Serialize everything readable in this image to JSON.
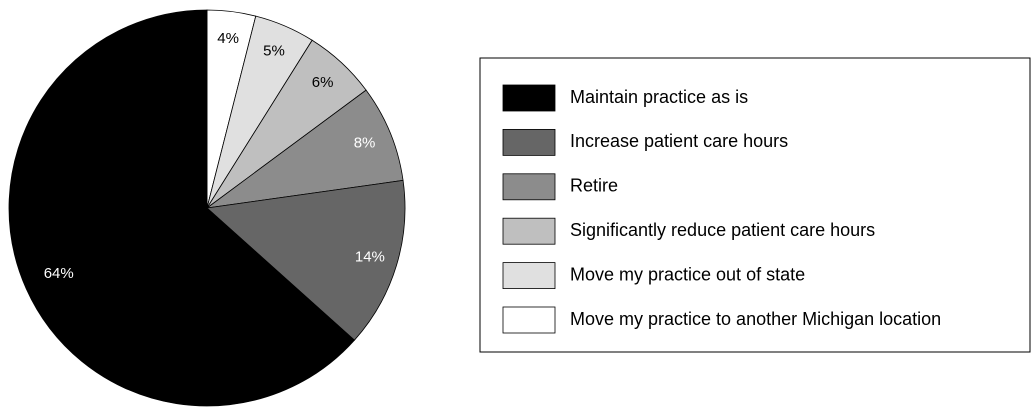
{
  "chart_data": {
    "type": "pie",
    "categories": [
      "Maintain practice as is",
      "Increase patient care hours",
      "Retire",
      "Significantly reduce patient care hours",
      "Move my practice out of state",
      "Move my practice to another Michigan location"
    ],
    "values": [
      64,
      14,
      8,
      6,
      5,
      4
    ],
    "value_labels": [
      "64%",
      "14%",
      "8%",
      "6%",
      "5%",
      "4%"
    ],
    "colors": [
      "#000000",
      "#666666",
      "#8c8c8c",
      "#bfbfbf",
      "#e0e0e0",
      "#ffffff"
    ],
    "legend": "right"
  }
}
